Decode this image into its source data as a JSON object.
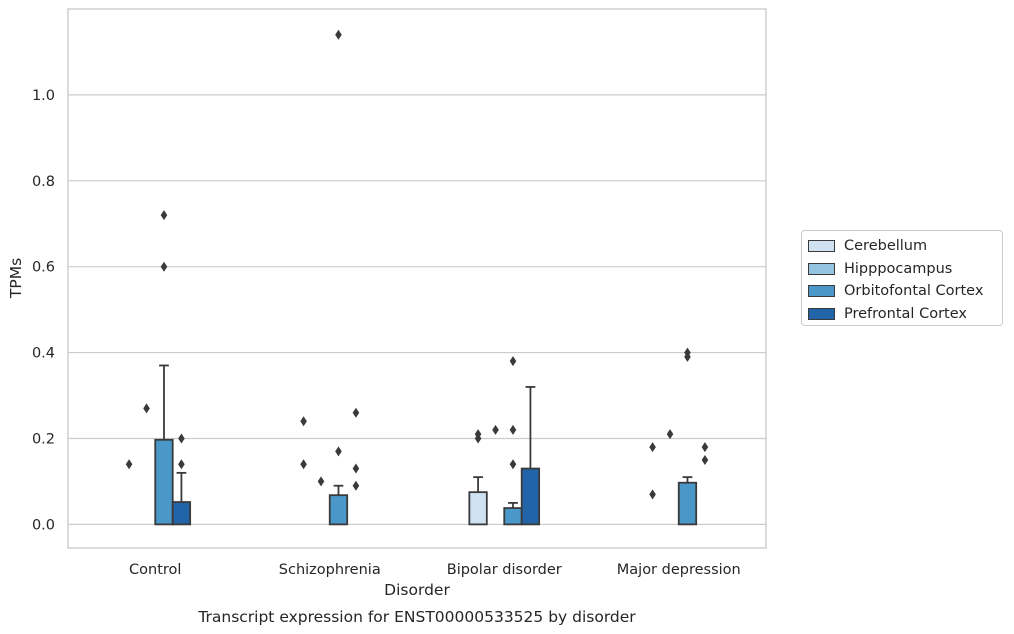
{
  "chart_data": {
    "type": "bar",
    "title": "Transcript expression for ENST00000533525 by disorder",
    "xlabel": "Disorder",
    "ylabel": "TPMs",
    "ylim": [
      -0.055,
      1.2
    ],
    "yticks": [
      "0.0",
      "0.2",
      "0.4",
      "0.6",
      "0.8",
      "1.0"
    ],
    "grid": true,
    "legend_position": "right",
    "categories": [
      "Control",
      "Schizophrenia",
      "Bipolar disorder",
      "Major depression"
    ],
    "series": [
      {
        "name": "Cerebellum",
        "color": "#d0e1f2",
        "values": [
          0.0,
          0.0,
          0.075,
          0.0
        ],
        "err_high": [
          null,
          null,
          0.11,
          null
        ],
        "outliers": [
          [
            0.14
          ],
          [
            0.24,
            0.14
          ],
          [
            0.21,
            0.2
          ],
          [
            0.18,
            0.07
          ]
        ]
      },
      {
        "name": "Hipppocampus",
        "color": "#94c4df",
        "values": [
          0.0,
          0.0,
          0.0,
          0.0
        ],
        "err_high": [
          null,
          null,
          null,
          null
        ],
        "outliers": [
          [
            0.27
          ],
          [
            0.1
          ],
          [
            0.22
          ],
          [
            0.21
          ]
        ]
      },
      {
        "name": "Orbitofontal Cortex",
        "color": "#4a98c9",
        "values": [
          0.197,
          0.068,
          0.038,
          0.097
        ],
        "err_high": [
          0.37,
          0.09,
          0.05,
          0.11
        ],
        "outliers": [
          [
            0.72,
            0.6
          ],
          [
            1.14,
            0.17
          ],
          [
            0.38,
            0.22,
            0.14
          ],
          [
            0.4,
            0.39
          ]
        ]
      },
      {
        "name": "Prefrontal Cortex",
        "color": "#2164a8",
        "values": [
          0.052,
          0.0,
          0.13,
          0.0
        ],
        "err_high": [
          0.12,
          null,
          0.32,
          null
        ],
        "outliers": [
          [
            0.2,
            0.14
          ],
          [
            0.26,
            0.13,
            0.09
          ],
          [],
          [
            0.18,
            0.15
          ]
        ]
      }
    ]
  }
}
